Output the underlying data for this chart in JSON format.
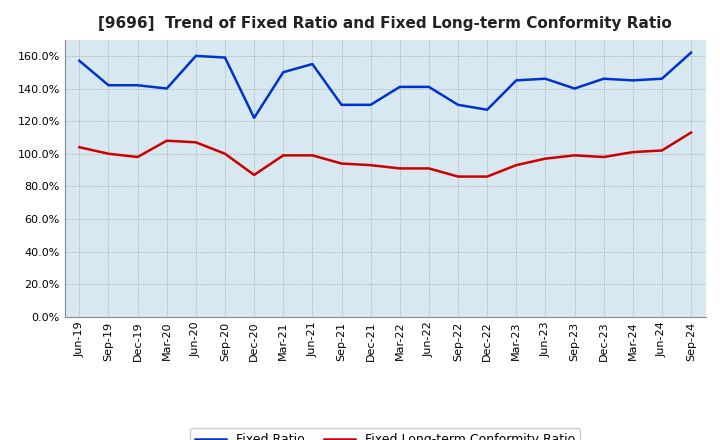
{
  "title": "[9696]  Trend of Fixed Ratio and Fixed Long-term Conformity Ratio",
  "x_labels": [
    "Jun-19",
    "Sep-19",
    "Dec-19",
    "Mar-20",
    "Jun-20",
    "Sep-20",
    "Dec-20",
    "Mar-21",
    "Jun-21",
    "Sep-21",
    "Dec-21",
    "Mar-22",
    "Jun-22",
    "Sep-22",
    "Dec-22",
    "Mar-23",
    "Jun-23",
    "Sep-23",
    "Dec-23",
    "Mar-24",
    "Jun-24",
    "Sep-24"
  ],
  "fixed_ratio": [
    1.57,
    1.42,
    1.42,
    1.4,
    1.6,
    1.59,
    1.22,
    1.5,
    1.55,
    1.3,
    1.3,
    1.41,
    1.41,
    1.3,
    1.27,
    1.45,
    1.46,
    1.4,
    1.46,
    1.45,
    1.46,
    1.62
  ],
  "fixed_lt_ratio": [
    1.04,
    1.0,
    0.98,
    1.08,
    1.07,
    1.0,
    0.87,
    0.99,
    0.99,
    0.94,
    0.93,
    0.91,
    0.91,
    0.86,
    0.86,
    0.93,
    0.97,
    0.99,
    0.98,
    1.01,
    1.02,
    1.13
  ],
  "blue_color": "#0033CC",
  "red_color": "#CC0000",
  "bg_color": "#D8E8F0",
  "grid_color": "#999999",
  "ylim": [
    0.0,
    1.7
  ],
  "yticks": [
    0.0,
    0.2,
    0.4,
    0.6,
    0.8,
    1.0,
    1.2,
    1.4,
    1.6
  ],
  "legend_fixed": "Fixed Ratio",
  "legend_lt": "Fixed Long-term Conformity Ratio",
  "title_fontsize": 11,
  "axis_fontsize": 8,
  "legend_fontsize": 9
}
